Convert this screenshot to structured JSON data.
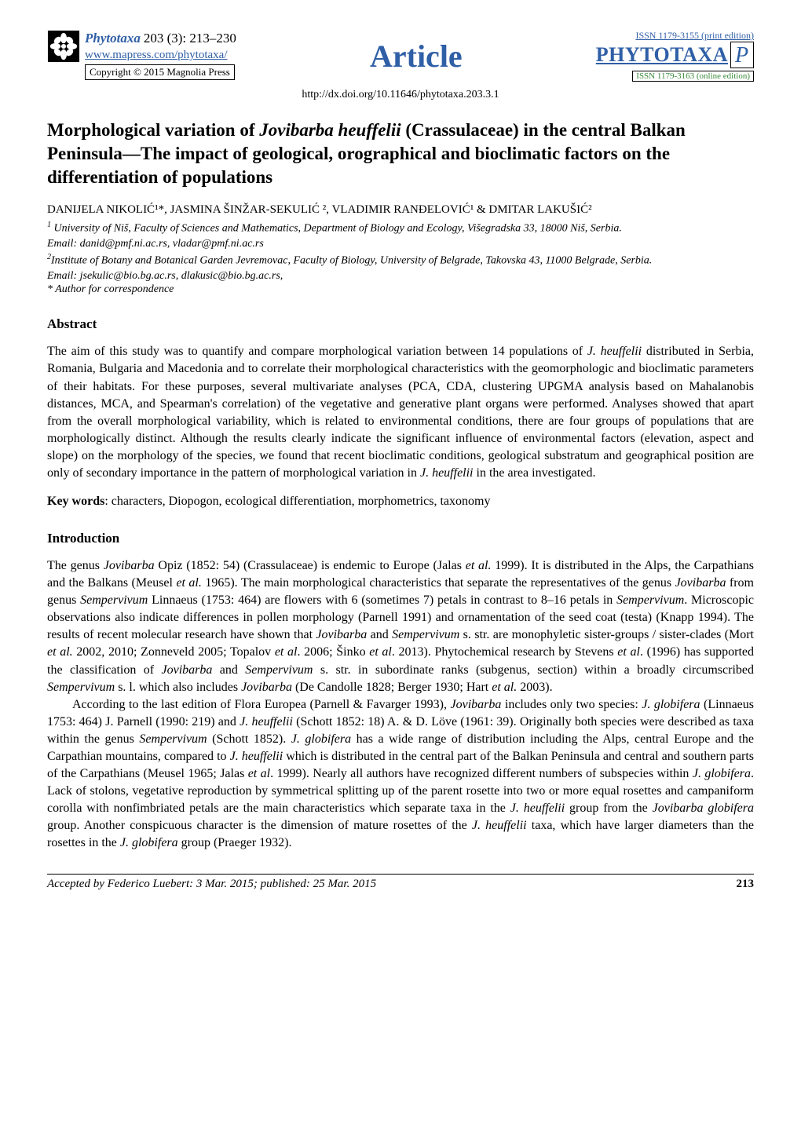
{
  "header": {
    "journal_name": "Phytotaxa",
    "issue": "203 (3): 213–230",
    "url": "www.mapress.com/phytotaxa/",
    "copyright": "Copyright © 2015 Magnolia Press",
    "article_label": "Article",
    "issn_print": "ISSN 1179-3155 (print edition)",
    "badge_text": "PHYTOTAXA",
    "issn_online": "ISSN 1179-3163 (online edition)",
    "doi": "http://dx.doi.org/10.11646/phytotaxa.203.3.1",
    "colors": {
      "link_blue": "#2f5fa6",
      "online_green": "#3a8a3a"
    }
  },
  "title": {
    "pre": "Morphological variation of ",
    "ital": "Jovibarba heuffelii",
    "post": " (Crassulaceae) in the central Balkan Peninsula—The impact of geological, orographical and bioclimatic factors on the differentiation of populations"
  },
  "authors_line": "DANIJELA NIKOLIĆ¹*, JASMINA ŠINŽAR-SEKULIĆ ², VLADIMIR RANĐELOVIĆ¹ & DMITAR LAKUŠIĆ²",
  "affil1_sup": "1",
  "affil1": " University of Niš, Faculty of Sciences and Mathematics, Department of Biology and Ecology, Višegradska 33, 18000 Niš, Serbia.",
  "affil1_email": "Email: danid@pmf.ni.ac.rs, vladar@pmf.ni.ac.rs",
  "affil2_sup": "2",
  "affil2": "Institute of Botany and Botanical Garden Jevremovac, Faculty of Biology, University of Belgrade, Takovska 43, 11000 Belgrade, Serbia.",
  "affil2_email": "Email: jsekulic@bio.bg.ac.rs, dlakusic@bio.bg.ac.rs,",
  "corr": "* Author for correspondence",
  "abstract": {
    "head": "Abstract",
    "p1a": "The aim of this study was to quantify and compare morphological variation between 14 populations of ",
    "p1b": "J. heuffelii",
    "p1c": " distributed in Serbia, Romania, Bulgaria and Macedonia and to correlate their morphological characteristics with the geomorphologic and bioclimatic parameters of their habitats. For these purposes, several multivariate analyses (PCA, CDA, clustering UPGMA analysis based on Mahalanobis distances, MCA, and Spearman's correlation) of the vegetative and generative plant organs were performed. Analyses showed that apart from the overall morphological variability, which is related to environmental conditions, there are four groups of populations that are morphologically distinct. Although the results clearly indicate the significant influence of environmental factors (elevation, aspect and slope) on the morphology of the species, we found that recent bioclimatic conditions, geological substratum and geographical position are only of secondary importance in the pattern of morphological variation in ",
    "p1d": "J. heuffelii",
    "p1e": " in the area investigated."
  },
  "keywords": {
    "label": "Key words",
    "text": ": characters, Diopogon, ecological differentiation, morphometrics, taxonomy"
  },
  "intro": {
    "head": "Introduction",
    "p1": "The genus <i>Jovibarba</i> Opiz (1852: 54) (Crassulaceae) is endemic to Europe (Jalas <i>et al.</i> 1999). It is distributed in the Alps, the Carpathians and the Balkans (Meusel <i>et al.</i> 1965). The main morphological characteristics that separate the representatives of the genus <i>Jovibarba</i> from genus <i>Sempervivum</i> Linnaeus (1753: 464) are flowers with 6 (sometimes 7) petals in contrast to 8–16 petals in <i>Sempervivum</i>. Microscopic observations also indicate differences in pollen morphology (Parnell 1991) and ornamentation of the seed coat (testa) (Knapp 1994). The results of recent molecular research have shown that <i>Jovibarba</i> and <i>Sempervivum</i> s. str. are monophyletic sister-groups / sister-clades (Mort <i>et al.</i> 2002, 2010; Zonneveld 2005; Topalov <i>et al</i>. 2006; Šinko <i>et al</i>. 2013). Phytochemical research by Stevens <i>et al</i>. (1996) has supported the classification of <i>Jovibarba</i> and <i>Sempervivum</i> s. str. in subordinate ranks (subgenus, section) within a broadly circumscribed <i>Sempervivum</i> s. l. which also includes <i>Jovibarba</i> (De Candolle 1828; Berger 1930; Hart <i>et al.</i> 2003).",
    "p2": "According to the last edition of Flora Europea (Parnell & Favarger 1993), <i>Jovibarba</i> includes only two species: <i>J. globifera</i> (Linnaeus 1753: 464) J. Parnell (1990: 219) and <i>J. heuffelii</i> (Schott 1852: 18) A. & D. Löve (1961: 39). Originally both species were described as taxa within the genus <i>Sempervivum</i> (Schott 1852). <i>J. globifera</i> has a wide range of distribution including the Alps, central Europe and the Carpathian mountains, compared to <i>J. heuffelii</i> which is distributed in the central part of the Balkan Peninsula and central and southern parts of the Carpathians (Meusel 1965; Jalas <i>et al</i>. 1999). Nearly all authors have recognized different numbers of subspecies within <i>J. globifera</i>. Lack of stolons, vegetative reproduction by symmetrical splitting up of the parent rosette into two or more equal rosettes and campaniform corolla with nonfimbriated petals are the main characteristics which separate taxa in the <i>J. heuffelii</i> group from the <i>Jovibarba globifera</i> group. Another conspicuous character is the dimension of mature rosettes of the <i>J. heuffelii</i> taxa, which have larger diameters than the rosettes in the <i>J. globifera</i> group (Praeger 1932)."
  },
  "footer": {
    "accepted": "Accepted by Federico Luebert: 3 Mar. 2015; published: 25 Mar. 2015",
    "page": "213"
  }
}
